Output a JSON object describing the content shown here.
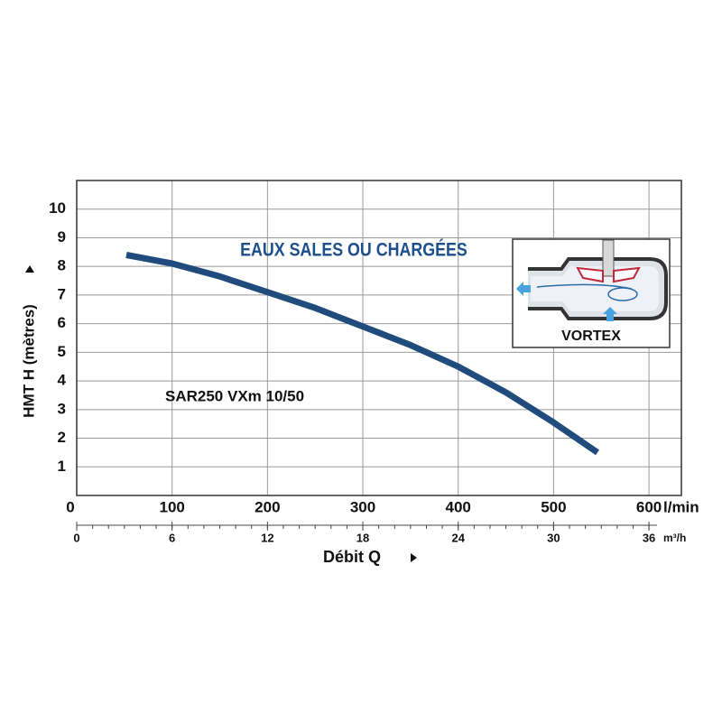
{
  "chart_data": {
    "type": "line",
    "title": "EAUX SALES OU CHARGÉES",
    "model": "SAR250 VXm 10/50",
    "inset_label": "VORTEX",
    "ylabel": "HMT H (mètres)",
    "xlabel": "Débit Q",
    "xunit": "l/min",
    "x2unit": "m³/h",
    "x": [
      52,
      100,
      150,
      200,
      250,
      300,
      350,
      400,
      450,
      500,
      546
    ],
    "series": [
      {
        "name": "SAR250 VXm 10/50",
        "color": "#1f4c7c",
        "values": [
          8.4,
          8.1,
          7.65,
          7.1,
          6.55,
          5.9,
          5.25,
          4.5,
          3.6,
          2.55,
          1.5
        ]
      }
    ],
    "xlim": [
      0,
      634
    ],
    "xticks": [
      0,
      100,
      200,
      300,
      400,
      500,
      600
    ],
    "x2lim": [
      0,
      38.04
    ],
    "x2ticks": [
      0,
      6,
      12,
      18,
      24,
      30,
      36
    ],
    "ylim": [
      0,
      11
    ],
    "yticks": [
      1,
      2,
      3,
      4,
      5,
      6,
      7,
      8,
      9,
      10
    ],
    "grid": true
  }
}
